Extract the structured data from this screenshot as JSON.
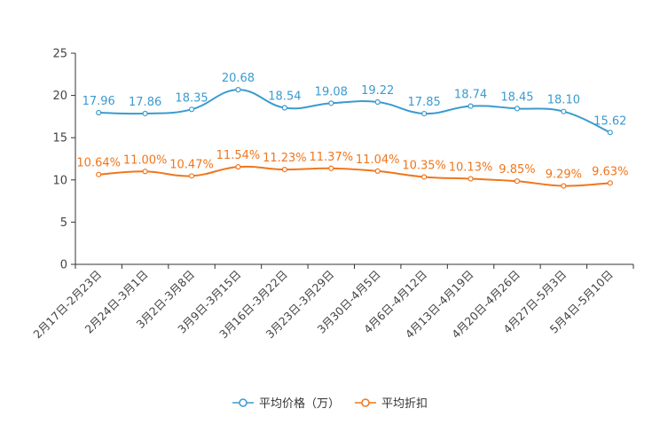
{
  "chart_data": {
    "type": "line",
    "title": "",
    "xlabel": "",
    "ylabel": "",
    "ylim": [
      0,
      25
    ],
    "yticks": [
      "0",
      "5",
      "10",
      "15",
      "20",
      "25"
    ],
    "grid": false,
    "legend_position": "bottom-center",
    "categories": [
      "2月17日-2月23日",
      "2月24日-3月1日",
      "3月2日-3月8日",
      "3月9日-3月15日",
      "3月16日-3月22日",
      "3月23日-3月29日",
      "3月30日-4月5日",
      "4月6日-4月12日",
      "4月13日-4月19日",
      "4月20日-4月26日",
      "4月27日-5月3日",
      "5月4日-5月10日"
    ],
    "series": [
      {
        "name": "平均价格（万）",
        "color": "#3a9bd0",
        "values": [
          17.96,
          17.86,
          18.35,
          20.68,
          18.54,
          19.08,
          19.22,
          17.85,
          18.74,
          18.45,
          18.1,
          15.62
        ],
        "labels": [
          "17.96",
          "17.86",
          "18.35",
          "20.68",
          "18.54",
          "19.08",
          "19.22",
          "17.85",
          "18.74",
          "18.45",
          "18.10",
          "15.62"
        ]
      },
      {
        "name": "平均折扣",
        "color": "#f0761c",
        "values": [
          10.64,
          11.0,
          10.47,
          11.54,
          11.23,
          11.37,
          11.04,
          10.35,
          10.13,
          9.85,
          9.29,
          9.63
        ],
        "labels": [
          "10.64%",
          "11.00%",
          "10.47%",
          "11.54%",
          "11.23%",
          "11.37%",
          "11.04%",
          "10.35%",
          "10.13%",
          "9.85%",
          "9.29%",
          "9.63%"
        ]
      }
    ]
  }
}
